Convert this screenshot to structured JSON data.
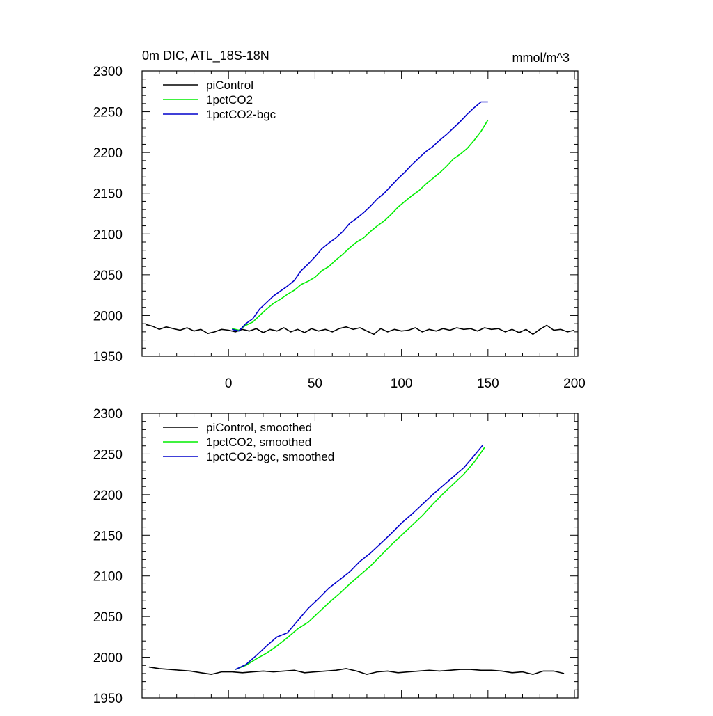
{
  "chart_data": [
    {
      "type": "line",
      "title": "0m DIC, ATL_18S-18N",
      "units": "mmol/m^3",
      "xlabel": "",
      "ylabel": "",
      "xlim": [
        -50,
        202
      ],
      "ylim": [
        1950,
        2300
      ],
      "xticks": [
        0,
        50,
        100,
        150,
        200
      ],
      "yticks": [
        1950,
        2000,
        2050,
        2100,
        2150,
        2200,
        2250,
        2300
      ],
      "legend_position": "top-left",
      "series": [
        {
          "name": "piControl",
          "color": "#000000",
          "x": [
            -48,
            -44,
            -40,
            -36,
            -32,
            -28,
            -24,
            -20,
            -16,
            -12,
            -8,
            -4,
            0,
            4,
            8,
            12,
            16,
            20,
            24,
            28,
            32,
            36,
            40,
            44,
            48,
            52,
            56,
            60,
            64,
            68,
            72,
            76,
            80,
            84,
            88,
            92,
            96,
            100,
            104,
            108,
            112,
            116,
            120,
            124,
            128,
            132,
            136,
            140,
            144,
            148,
            152,
            156,
            160,
            164,
            168,
            172,
            176,
            180,
            184,
            188,
            192,
            196,
            200
          ],
          "y": [
            1989,
            1987,
            1983,
            1986,
            1984,
            1982,
            1985,
            1981,
            1983,
            1978,
            1980,
            1983,
            1982,
            1980,
            1983,
            1981,
            1984,
            1979,
            1983,
            1981,
            1985,
            1980,
            1983,
            1979,
            1984,
            1981,
            1983,
            1980,
            1984,
            1986,
            1983,
            1985,
            1981,
            1977,
            1984,
            1980,
            1983,
            1981,
            1982,
            1985,
            1980,
            1983,
            1981,
            1984,
            1982,
            1985,
            1983,
            1984,
            1981,
            1985,
            1983,
            1984,
            1980,
            1983,
            1979,
            1983,
            1977,
            1983,
            1988,
            1982,
            1983,
            1980,
            1982
          ]
        },
        {
          "name": "1pctCO2",
          "color": "#00ee00",
          "x": [
            2,
            6,
            10,
            14,
            18,
            22,
            26,
            30,
            34,
            38,
            42,
            46,
            50,
            54,
            58,
            62,
            66,
            70,
            74,
            78,
            82,
            86,
            90,
            94,
            98,
            102,
            106,
            110,
            114,
            118,
            122,
            126,
            130,
            134,
            138,
            142,
            146,
            150
          ],
          "y": [
            1984,
            1982,
            1988,
            1992,
            2000,
            2008,
            2015,
            2020,
            2026,
            2031,
            2038,
            2042,
            2047,
            2055,
            2060,
            2068,
            2075,
            2083,
            2090,
            2095,
            2103,
            2110,
            2116,
            2124,
            2133,
            2140,
            2147,
            2153,
            2161,
            2168,
            2175,
            2183,
            2192,
            2198,
            2205,
            2215,
            2226,
            2240
          ]
        },
        {
          "name": "1pctCO2-bgc",
          "color": "#0000cc",
          "x": [
            2,
            6,
            10,
            14,
            18,
            22,
            26,
            30,
            34,
            38,
            42,
            46,
            50,
            54,
            58,
            62,
            66,
            70,
            74,
            78,
            82,
            86,
            90,
            94,
            98,
            102,
            106,
            110,
            114,
            118,
            122,
            126,
            130,
            134,
            138,
            142,
            146,
            150
          ],
          "y": [
            1983,
            1981,
            1990,
            1996,
            2008,
            2016,
            2024,
            2030,
            2036,
            2043,
            2055,
            2063,
            2072,
            2082,
            2089,
            2095,
            2103,
            2113,
            2119,
            2126,
            2134,
            2143,
            2150,
            2159,
            2168,
            2176,
            2185,
            2193,
            2201,
            2207,
            2215,
            2222,
            2230,
            2238,
            2247,
            2255,
            2262,
            2262
          ]
        }
      ]
    },
    {
      "type": "line",
      "title": "",
      "xlabel": "",
      "ylabel": "",
      "xlim": [
        -50,
        202
      ],
      "ylim": [
        1950,
        2300
      ],
      "xticks": [
        0,
        50,
        100,
        150,
        200
      ],
      "yticks": [
        1950,
        2000,
        2050,
        2100,
        2150,
        2200,
        2250,
        2300
      ],
      "legend_position": "top-left",
      "series": [
        {
          "name": "piControl, smoothed",
          "color": "#000000",
          "x": [
            -46,
            -40,
            -34,
            -28,
            -22,
            -16,
            -10,
            -4,
            2,
            8,
            14,
            20,
            26,
            32,
            38,
            44,
            50,
            56,
            62,
            68,
            74,
            80,
            86,
            92,
            98,
            104,
            110,
            116,
            122,
            128,
            134,
            140,
            146,
            152,
            158,
            164,
            170,
            176,
            182,
            188,
            194
          ],
          "y": [
            1988,
            1986,
            1985,
            1984,
            1983,
            1981,
            1979,
            1982,
            1982,
            1981,
            1982,
            1983,
            1982,
            1983,
            1984,
            1981,
            1982,
            1983,
            1984,
            1986,
            1983,
            1979,
            1982,
            1983,
            1981,
            1982,
            1983,
            1984,
            1983,
            1984,
            1985,
            1985,
            1984,
            1984,
            1983,
            1981,
            1982,
            1979,
            1983,
            1983,
            1980
          ]
        },
        {
          "name": "1pctCO2, smoothed",
          "color": "#00ee00",
          "x": [
            4,
            10,
            16,
            22,
            28,
            34,
            40,
            46,
            52,
            58,
            64,
            70,
            76,
            82,
            88,
            94,
            100,
            106,
            112,
            118,
            124,
            130,
            136,
            142,
            148
          ],
          "y": [
            1985,
            1990,
            1998,
            2005,
            2014,
            2024,
            2035,
            2043,
            2055,
            2067,
            2078,
            2090,
            2101,
            2112,
            2125,
            2138,
            2150,
            2162,
            2174,
            2188,
            2201,
            2213,
            2225,
            2240,
            2258
          ]
        },
        {
          "name": "1pctCO2-bgc, smoothed",
          "color": "#0000cc",
          "x": [
            4,
            10,
            16,
            22,
            28,
            34,
            40,
            46,
            52,
            58,
            64,
            70,
            76,
            82,
            88,
            94,
            100,
            106,
            112,
            118,
            124,
            130,
            136,
            142,
            147
          ],
          "y": [
            1985,
            1991,
            2002,
            2014,
            2025,
            2030,
            2045,
            2060,
            2072,
            2085,
            2095,
            2105,
            2118,
            2128,
            2140,
            2152,
            2165,
            2176,
            2188,
            2200,
            2211,
            2222,
            2233,
            2248,
            2261
          ]
        }
      ]
    }
  ]
}
